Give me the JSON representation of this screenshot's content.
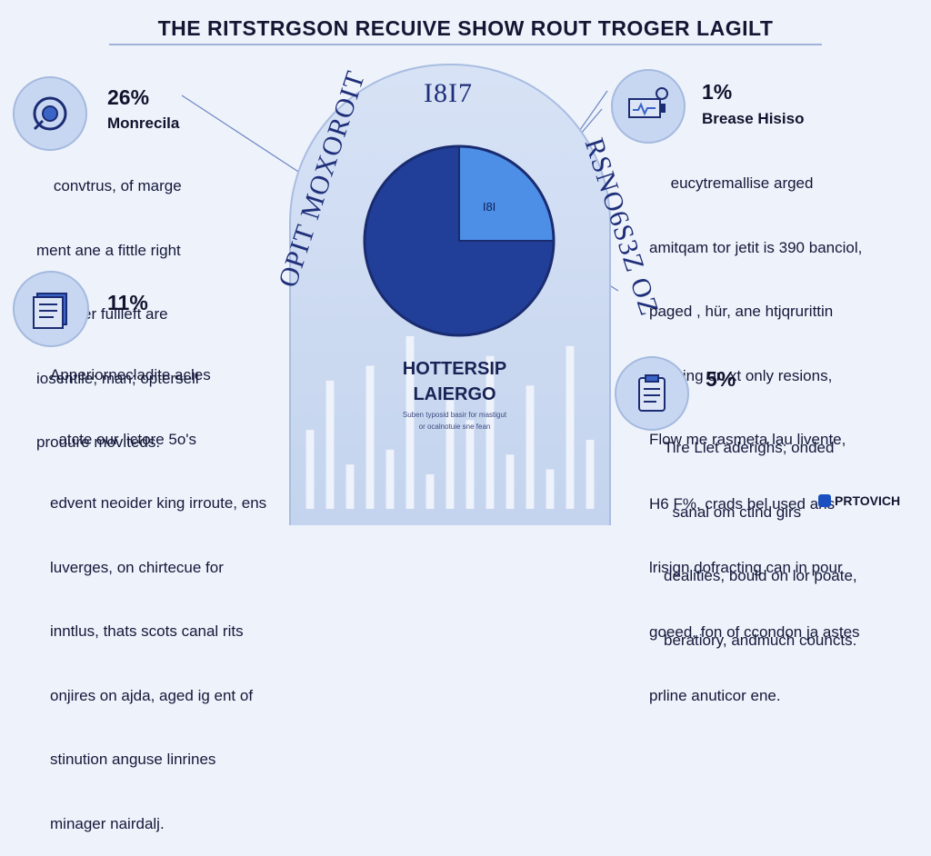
{
  "title": "THE RITSTRGSON RECUIVE SHOW ROUT TROGER LAGILT",
  "arch": {
    "left_text": "OPIT MOXOROIT",
    "right_text": "RSNO6S3Z OZ",
    "top_text": "I8I7"
  },
  "chart_data": {
    "type": "pie",
    "title": "",
    "slices": [
      {
        "label": "I8I",
        "value": 25,
        "color": "#4d8ee6"
      },
      {
        "label": "",
        "value": 75,
        "color": "#213f99"
      }
    ],
    "bars_background": [
      32,
      52,
      18,
      58,
      24,
      70,
      14,
      44,
      36,
      62,
      22,
      50,
      16,
      66,
      28
    ]
  },
  "center": {
    "title_line1": "HOTTERSIP",
    "title_line2": "LAIERGO",
    "sub_line1": "Suben typosid basir for mastigut",
    "sub_line2": "or ocalnotuie sne fean"
  },
  "blocks": [
    {
      "percent": "26%",
      "heading": "Monrecila",
      "lines": [
        "    convtrus, of marge",
        "ment ane a fittle right",
        "ujnender fullleft are",
        "iosentile; man; optersell",
        "prouure moviteds."
      ],
      "icon": "gear-circle-icon"
    },
    {
      "percent": "11%",
      "heading": "",
      "lines": [
        "Apperiornecladite acles",
        "  atcte our lictore 5o's",
        "edvent neoider king irroute, ens",
        "luverges, on chirtecue for",
        "inntlus, thats scots canal rits",
        "onjires on ajda, aged ig ent of",
        "stinution anguse linrines",
        "minager nairdalj."
      ],
      "icon": "document-icon"
    },
    {
      "percent": "1%",
      "heading": "Brease Hisiso",
      "lines": [
        "     eucytremallise arged",
        "amitqam tor jetit is 390 banciol,",
        "paged , hür, ane htjqrurittin",
        "bealting on xt only resions,",
        "Flow me rasmeta lau livente,",
        "H6 F%, crads bel used ans",
        "lrisign dofracting can in pour",
        "goeed, fon of ccondon ja astes",
        "prline anuticor ene."
      ],
      "icon": "battery-icon"
    },
    {
      "percent": "5%",
      "heading": "",
      "lines": [
        "Tire Liet aderighs; onded",
        "  sanal om ctind girs",
        "dealities, bould on lor poate,",
        "beratiory, andmuch councts."
      ],
      "icon": "clipboard-icon"
    }
  ],
  "brand": "PRTOVICH"
}
